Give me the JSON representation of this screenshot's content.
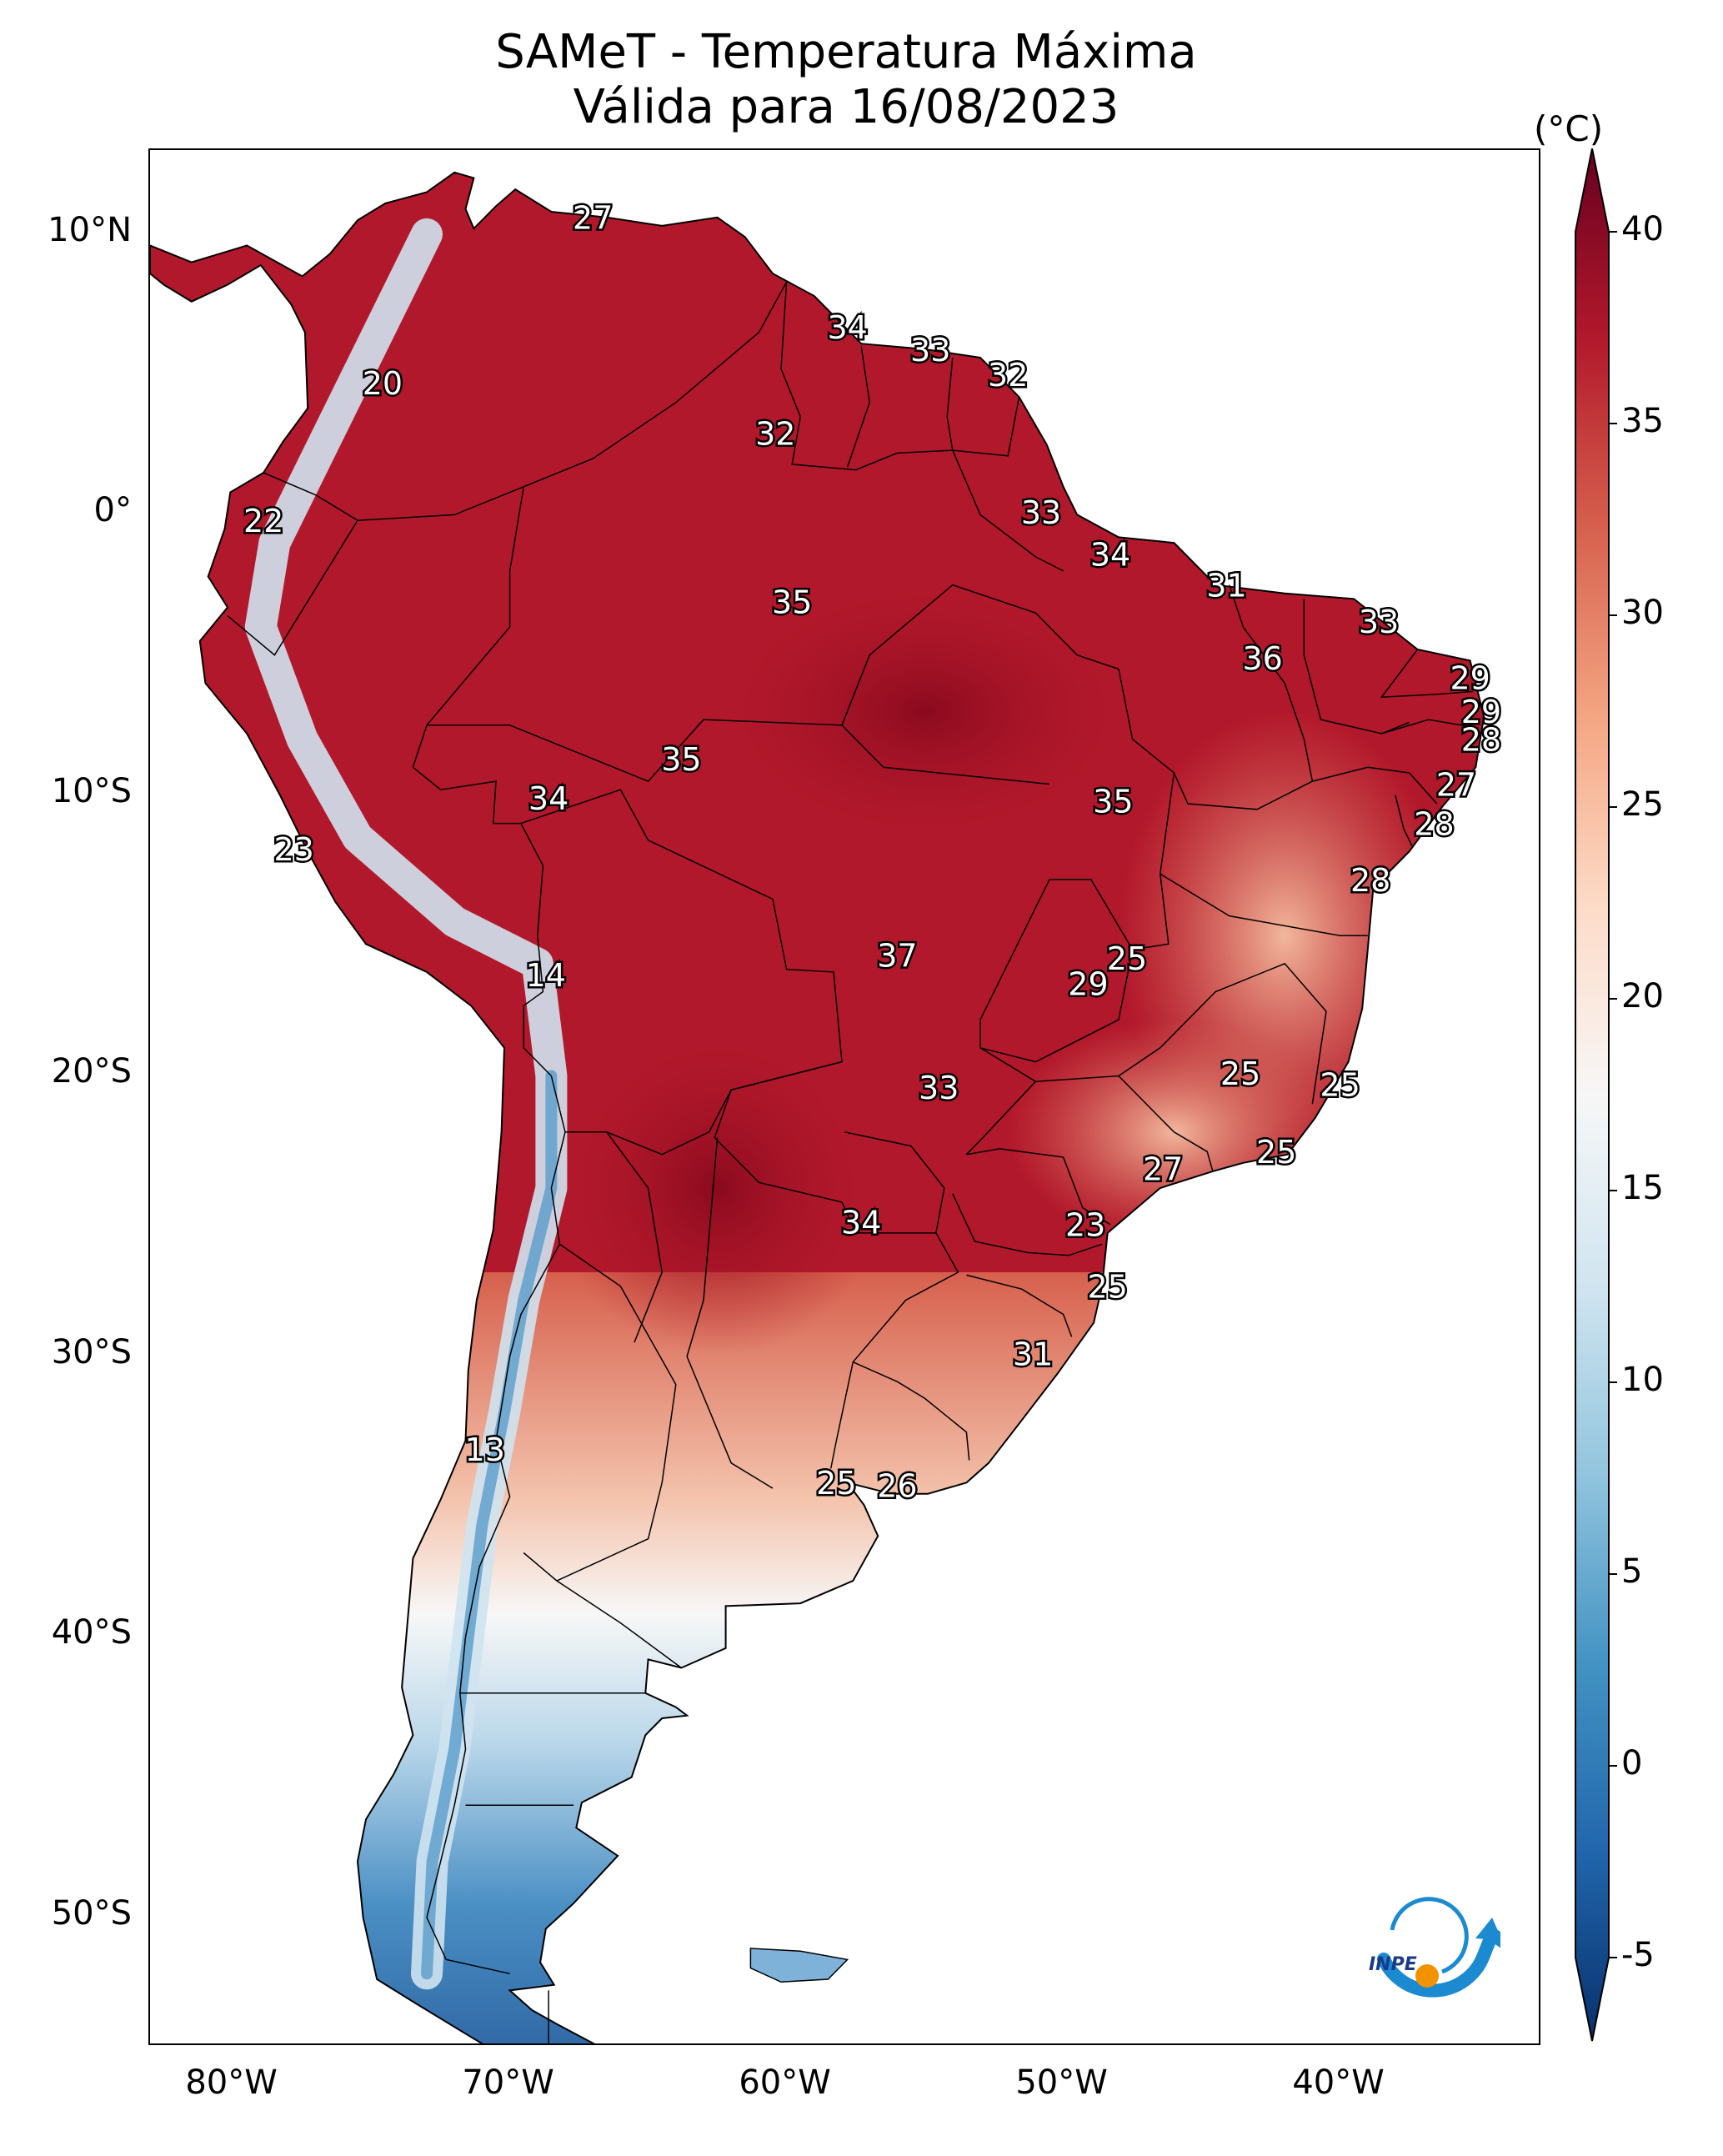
{
  "title": {
    "line1": "SAMeT - Temperatura Máxima",
    "line2": "Válida para 16/08/2023"
  },
  "colorbar": {
    "unit": "(°C)",
    "ticks": [
      "40",
      "35",
      "30",
      "25",
      "20",
      "15",
      "10",
      "5",
      "0",
      "-5"
    ],
    "range": [
      -5,
      40
    ],
    "colors": [
      "#08306b",
      "#2166ac",
      "#4393c3",
      "#92c5de",
      "#d1e5f0",
      "#f7f7f7",
      "#fddbc7",
      "#f4a582",
      "#d6604d",
      "#b2182b",
      "#67001f"
    ]
  },
  "axes": {
    "lat_labels": [
      "10°N",
      "0°",
      "10°S",
      "20°S",
      "30°S",
      "40°S",
      "50°S"
    ],
    "lon_labels": [
      "80°W",
      "70°W",
      "60°W",
      "50°W",
      "40°W"
    ]
  },
  "map_labels": [
    {
      "text": "27",
      "lon": -67,
      "lat": 10.5
    },
    {
      "text": "34",
      "lon": -57.8,
      "lat": 6.6
    },
    {
      "text": "33",
      "lon": -54.8,
      "lat": 5.8
    },
    {
      "text": "32",
      "lon": -52,
      "lat": 4.9
    },
    {
      "text": "20",
      "lon": -74.6,
      "lat": 4.6
    },
    {
      "text": "32",
      "lon": -60.4,
      "lat": 2.8
    },
    {
      "text": "22",
      "lon": -78.9,
      "lat": -0.3
    },
    {
      "text": "33",
      "lon": -50.8,
      "lat": 0
    },
    {
      "text": "34",
      "lon": -48.3,
      "lat": -1.5
    },
    {
      "text": "31",
      "lon": -44.1,
      "lat": -2.6
    },
    {
      "text": "35",
      "lon": -59.8,
      "lat": -3.2
    },
    {
      "text": "33",
      "lon": -38.6,
      "lat": -3.9
    },
    {
      "text": "36",
      "lon": -42.8,
      "lat": -5.2
    },
    {
      "text": "29",
      "lon": -35.3,
      "lat": -5.9
    },
    {
      "text": "29",
      "lon": -34.9,
      "lat": -7.1
    },
    {
      "text": "28",
      "lon": -34.9,
      "lat": -8.1
    },
    {
      "text": "35",
      "lon": -63.8,
      "lat": -8.8
    },
    {
      "text": "27",
      "lon": -35.8,
      "lat": -9.7
    },
    {
      "text": "34",
      "lon": -68.6,
      "lat": -10.2
    },
    {
      "text": "35",
      "lon": -48.2,
      "lat": -10.3
    },
    {
      "text": "28",
      "lon": -36.6,
      "lat": -11.1
    },
    {
      "text": "23",
      "lon": -77.8,
      "lat": -12
    },
    {
      "text": "28",
      "lon": -38.9,
      "lat": -13.1
    },
    {
      "text": "37",
      "lon": -56,
      "lat": -15.8
    },
    {
      "text": "25",
      "lon": -47.7,
      "lat": -15.9
    },
    {
      "text": "14",
      "lon": -68.7,
      "lat": -16.5
    },
    {
      "text": "29",
      "lon": -49.1,
      "lat": -16.8
    },
    {
      "text": "25",
      "lon": -43.6,
      "lat": -20
    },
    {
      "text": "25",
      "lon": -40,
      "lat": -20.4
    },
    {
      "text": "33",
      "lon": -54.5,
      "lat": -20.5
    },
    {
      "text": "25",
      "lon": -42.3,
      "lat": -22.8
    },
    {
      "text": "27",
      "lon": -46.4,
      "lat": -23.4
    },
    {
      "text": "23",
      "lon": -49.2,
      "lat": -25.4
    },
    {
      "text": "34",
      "lon": -57.3,
      "lat": -25.3
    },
    {
      "text": "25",
      "lon": -48.4,
      "lat": -27.6
    },
    {
      "text": "31",
      "lon": -51.1,
      "lat": -30
    },
    {
      "text": "13",
      "lon": -70.9,
      "lat": -33.4
    },
    {
      "text": "25",
      "lon": -58.2,
      "lat": -34.6
    },
    {
      "text": "26",
      "lon": -56,
      "lat": -34.7
    }
  ]
}
